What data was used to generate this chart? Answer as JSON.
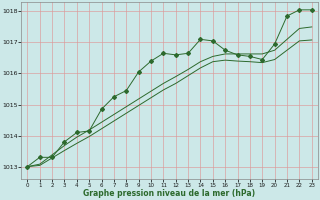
{
  "title": "Graphe pression niveau de la mer (hPa)",
  "bg_color": "#cce8e8",
  "grid_color": "#dd9999",
  "line_color": "#2d6a2d",
  "ylim": [
    1012.6,
    1018.3
  ],
  "yticks": [
    1013,
    1014,
    1015,
    1016,
    1017,
    1018
  ],
  "xlim": [
    -0.5,
    23.5
  ],
  "xticks": [
    0,
    1,
    2,
    3,
    4,
    5,
    6,
    7,
    8,
    9,
    10,
    11,
    12,
    13,
    14,
    15,
    16,
    17,
    18,
    19,
    20,
    21,
    22,
    23
  ],
  "y_jagged": [
    1013.0,
    1013.3,
    1013.3,
    1013.8,
    1014.1,
    1014.15,
    1014.85,
    1015.25,
    1015.45,
    1016.05,
    1016.4,
    1016.65,
    1016.6,
    1016.65,
    1017.1,
    1017.05,
    1016.75,
    1016.6,
    1016.55,
    1016.45,
    1016.95,
    1017.85,
    1018.05,
    1018.05
  ],
  "y_smooth1": [
    1013.0,
    1013.08,
    1013.38,
    1013.68,
    1013.95,
    1014.18,
    1014.43,
    1014.68,
    1014.93,
    1015.18,
    1015.43,
    1015.68,
    1015.9,
    1016.13,
    1016.38,
    1016.55,
    1016.63,
    1016.63,
    1016.63,
    1016.63,
    1016.75,
    1017.1,
    1017.45,
    1017.5
  ],
  "y_smooth2": [
    1013.0,
    1013.04,
    1013.28,
    1013.52,
    1013.75,
    1013.97,
    1014.22,
    1014.47,
    1014.72,
    1014.97,
    1015.22,
    1015.47,
    1015.68,
    1015.93,
    1016.18,
    1016.38,
    1016.43,
    1016.4,
    1016.38,
    1016.35,
    1016.45,
    1016.75,
    1017.05,
    1017.08
  ]
}
